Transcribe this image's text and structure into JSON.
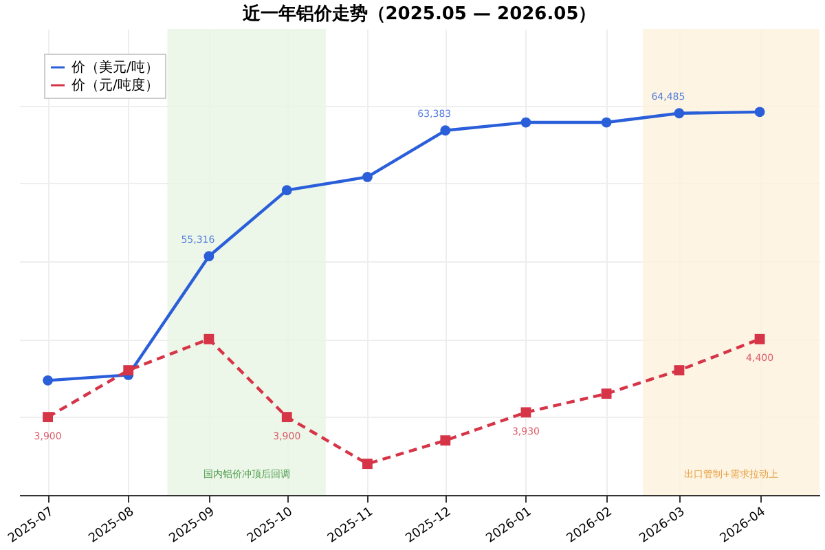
{
  "chart_data": {
    "type": "line",
    "title": "近一年铝价走势（2025.05 — 2026.05）",
    "x": [
      "2025-07",
      "2025-08",
      "2025-09",
      "2025-10",
      "2025-11",
      "2025-12",
      "2026-01",
      "2026-02",
      "2026-03",
      "2026-04"
    ],
    "xlim": [
      "2025-06-20",
      "2026-04-24"
    ],
    "xticks": [
      {
        "value": "2025-07",
        "label": "2025-07"
      },
      {
        "value": "2025-08",
        "label": "2025-08"
      },
      {
        "value": "2025-09",
        "label": "2025-09"
      },
      {
        "value": "2025-10",
        "label": "2025-10"
      },
      {
        "value": "2025-11",
        "label": "2025-11"
      },
      {
        "value": "2025-12",
        "label": "2025-12"
      },
      {
        "value": "2026-01",
        "label": "2026-01"
      },
      {
        "value": "2026-02",
        "label": "2026-02"
      },
      {
        "value": "2026-03",
        "label": "2026-03"
      },
      {
        "value": "2026-04",
        "label": "2026-04"
      }
    ],
    "ylim": [
      40000,
      69900
    ],
    "y2lim": [
      3400,
      6390
    ],
    "series": [
      {
        "name": "价（美元/吨）",
        "color": "#2b5fd9",
        "marker": "circle",
        "line_style": "solid",
        "values": [
          47350,
          47700,
          55316,
          59550,
          60400,
          63383,
          63900,
          63900,
          64485,
          64570
        ],
        "value_labels": [
          null,
          null,
          "55,316",
          null,
          null,
          "63,383",
          null,
          null,
          "64,485",
          null
        ]
      },
      {
        "name": "价（元/吨度）",
        "color": "#d63447",
        "marker": "square",
        "line_style": "dashed",
        "axis": "y2",
        "values": [
          3900,
          4200,
          4400,
          3900,
          3600,
          3750,
          3930,
          4050,
          4200,
          4400
        ],
        "value_labels": [
          "3,900",
          null,
          null,
          "3,900",
          null,
          null,
          "3,930",
          null,
          null,
          "4,400"
        ]
      }
    ],
    "bands": [
      {
        "axis": "x",
        "from": "2025-08-16",
        "to": "2025-10-16",
        "label": "国内铝价冲顶后回调",
        "color": "#e8f5e4"
      },
      {
        "axis": "x",
        "from": "2026-02-15",
        "to": "2026-04-24",
        "label": "出口管制+需求拉动上",
        "color": "#fdf1dc"
      }
    ],
    "grid": true,
    "legend": "top left",
    "tick_labels": "x"
  }
}
